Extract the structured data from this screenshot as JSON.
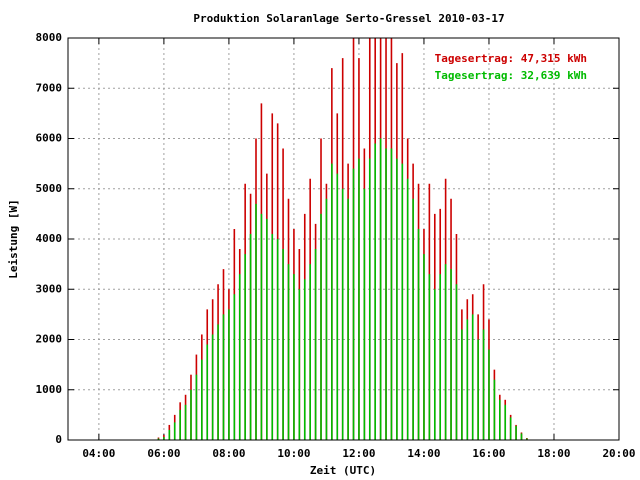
{
  "chart_data": {
    "type": "impulse",
    "title": "Produktion Solaranlage Serto-Gressel 2010-03-17",
    "x_label": "Zeit (UTC)",
    "y_label": "Leistung [W]",
    "x": [
      "05:50",
      "06:00",
      "06:10",
      "06:20",
      "06:30",
      "06:40",
      "06:50",
      "07:00",
      "07:10",
      "07:20",
      "07:30",
      "07:40",
      "07:50",
      "08:00",
      "08:10",
      "08:20",
      "08:30",
      "08:40",
      "08:50",
      "09:00",
      "09:10",
      "09:20",
      "09:30",
      "09:40",
      "09:50",
      "10:00",
      "10:10",
      "10:20",
      "10:30",
      "10:40",
      "10:50",
      "11:00",
      "11:10",
      "11:20",
      "11:30",
      "11:40",
      "11:50",
      "12:00",
      "12:10",
      "12:20",
      "12:30",
      "12:40",
      "12:50",
      "13:00",
      "13:10",
      "13:20",
      "13:30",
      "13:40",
      "13:50",
      "14:00",
      "14:10",
      "14:20",
      "14:30",
      "14:40",
      "14:50",
      "15:00",
      "15:10",
      "15:20",
      "15:30",
      "15:40",
      "15:50",
      "16:00",
      "16:10",
      "16:20",
      "16:30",
      "16:40",
      "16:50",
      "17:00",
      "17:10"
    ],
    "series": [
      {
        "name": "Tagesertrag: 47,315 kWh",
        "color": "#cc0000",
        "values": [
          50,
          100,
          300,
          500,
          750,
          900,
          1300,
          1700,
          2100,
          2600,
          2800,
          3100,
          3400,
          3000,
          4200,
          3800,
          5100,
          4900,
          6000,
          6700,
          5300,
          6500,
          6300,
          5800,
          4800,
          4200,
          3800,
          4500,
          5200,
          4300,
          6000,
          5100,
          7400,
          6500,
          7600,
          5500,
          8000,
          7600,
          5800,
          8000,
          8000,
          8000,
          8000,
          8000,
          7500,
          7700,
          6000,
          5500,
          5100,
          4200,
          5100,
          4500,
          4600,
          5200,
          4800,
          4100,
          2600,
          2800,
          2900,
          2500,
          3100,
          2400,
          1400,
          900,
          800,
          500,
          300,
          150,
          40
        ]
      },
      {
        "name": "Tagesertrag: 32,639 kWh",
        "color": "#00bb00",
        "values": [
          30,
          60,
          200,
          350,
          600,
          700,
          1000,
          1300,
          1600,
          1900,
          2100,
          2300,
          2500,
          2600,
          2900,
          3300,
          3700,
          4100,
          4700,
          4500,
          4400,
          4100,
          4000,
          3800,
          3500,
          3300,
          3000,
          3200,
          3500,
          3800,
          4500,
          4800,
          5500,
          5300,
          5000,
          4800,
          5400,
          5600,
          5000,
          5600,
          5900,
          6000,
          5800,
          5800,
          5600,
          5500,
          5200,
          4800,
          4200,
          3700,
          3300,
          3000,
          3300,
          3500,
          3400,
          3100,
          2200,
          2400,
          2500,
          2000,
          2200,
          1800,
          1200,
          800,
          700,
          450,
          280,
          130,
          30
        ]
      }
    ],
    "xlim": [
      "03:03",
      "20:00"
    ],
    "xticks": [
      "04:00",
      "06:00",
      "08:00",
      "10:00",
      "12:00",
      "14:00",
      "16:00",
      "18:00",
      "20:00"
    ],
    "ylim": [
      0,
      8000
    ],
    "yticks": [
      0,
      1000,
      2000,
      3000,
      4000,
      5000,
      6000,
      7000,
      8000
    ],
    "grid": true,
    "legend": "upper right"
  }
}
